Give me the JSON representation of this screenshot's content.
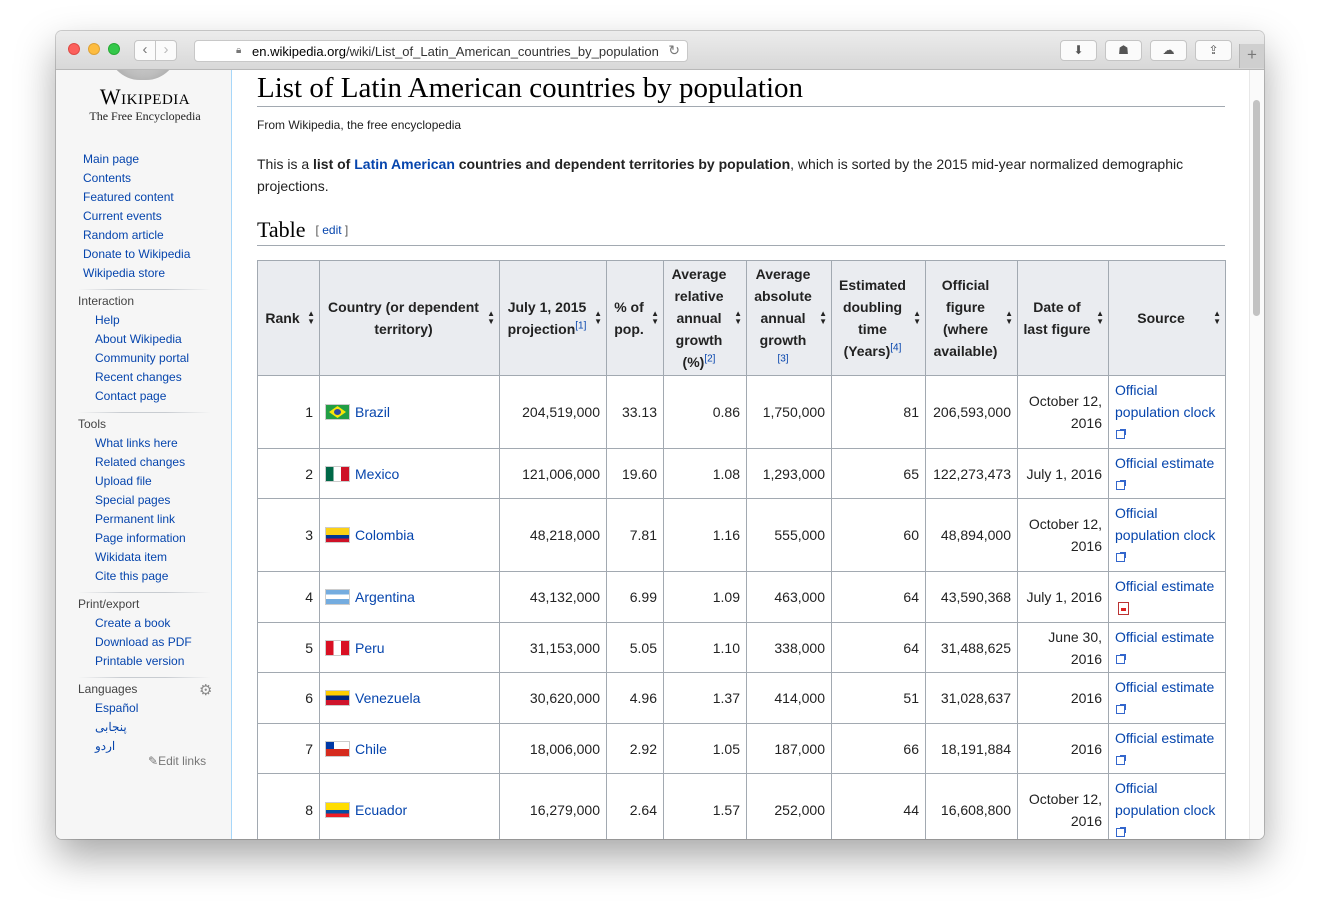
{
  "browser": {
    "url_host": "en.wikipedia.org",
    "url_path": "/wiki/List_of_Latin_American_countries_by_population"
  },
  "sidebar": {
    "wordmark": "Wikipedia",
    "tagline": "The Free Encyclopedia",
    "nav": [
      "Main page",
      "Contents",
      "Featured content",
      "Current events",
      "Random article",
      "Donate to Wikipedia",
      "Wikipedia store"
    ],
    "interaction_head": "Interaction",
    "interaction": [
      "Help",
      "About Wikipedia",
      "Community portal",
      "Recent changes",
      "Contact page"
    ],
    "tools_head": "Tools",
    "tools": [
      "What links here",
      "Related changes",
      "Upload file",
      "Special pages",
      "Permanent link",
      "Page information",
      "Wikidata item",
      "Cite this page"
    ],
    "print_head": "Print/export",
    "print": [
      "Create a book",
      "Download as PDF",
      "Printable version"
    ],
    "languages_head": "Languages",
    "languages": [
      "Español",
      "پنجابی",
      "اردو"
    ],
    "edit_links": "Edit links"
  },
  "article": {
    "title": "List of Latin American countries by population",
    "site_sub": "From Wikipedia, the free encyclopedia",
    "intro": {
      "p1": "This is a ",
      "b1": "list of ",
      "link": "Latin American",
      "b2": " countries and dependent territories by population",
      "p2": ", which is sorted by the 2015 mid-year normalized demographic projections."
    },
    "section_title": "Table",
    "edit_label": "edit"
  },
  "table": {
    "headers": {
      "rank": "Rank",
      "country": "Country (or dependent territory)",
      "projection": "July 1, 2015 projection",
      "projection_ref": "[1]",
      "pct": "% of pop.",
      "rel_growth": "Average relative annual growth (%)",
      "rel_growth_ref": "[2]",
      "abs_growth": "Average absolute annual growth",
      "abs_growth_ref": "[3]",
      "doubling": "Estimated doubling time (Years)",
      "doubling_ref": "[4]",
      "official": "Official figure (where available)",
      "date": "Date of last figure",
      "source": "Source"
    },
    "rows": [
      {
        "rank": "1",
        "flag": "brazil",
        "country": "Brazil",
        "projection": "204,519,000",
        "pct": "33.13",
        "rel": "0.86",
        "abs": "1,750,000",
        "doubling": "81",
        "official": "206,593,000",
        "date": "October 12, 2016",
        "source": "Official population clock",
        "source_icon": "external-link-icon"
      },
      {
        "rank": "2",
        "flag": "mexico",
        "country": "Mexico",
        "projection": "121,006,000",
        "pct": "19.60",
        "rel": "1.08",
        "abs": "1,293,000",
        "doubling": "65",
        "official": "122,273,473",
        "date": "July 1, 2016",
        "source": "Official estimate",
        "source_icon": "external-link-icon"
      },
      {
        "rank": "3",
        "flag": "colombia",
        "country": "Colombia",
        "projection": "48,218,000",
        "pct": "7.81",
        "rel": "1.16",
        "abs": "555,000",
        "doubling": "60",
        "official": "48,894,000",
        "date": "October 12, 2016",
        "source": "Official population clock",
        "source_icon": "external-link-icon"
      },
      {
        "rank": "4",
        "flag": "argentina",
        "country": "Argentina",
        "projection": "43,132,000",
        "pct": "6.99",
        "rel": "1.09",
        "abs": "463,000",
        "doubling": "64",
        "official": "43,590,368",
        "date": "July 1, 2016",
        "source": "Official estimate",
        "source_icon": "pdf-icon"
      },
      {
        "rank": "5",
        "flag": "peru",
        "country": "Peru",
        "projection": "31,153,000",
        "pct": "5.05",
        "rel": "1.10",
        "abs": "338,000",
        "doubling": "64",
        "official": "31,488,625",
        "date": "June 30, 2016",
        "source": "Official estimate",
        "source_icon": "external-link-icon"
      },
      {
        "rank": "6",
        "flag": "venezuela",
        "country": "Venezuela",
        "projection": "30,620,000",
        "pct": "4.96",
        "rel": "1.37",
        "abs": "414,000",
        "doubling": "51",
        "official": "31,028,637",
        "date": "2016",
        "source": "Official estimate",
        "source_icon": "external-link-icon"
      },
      {
        "rank": "7",
        "flag": "chile",
        "country": "Chile",
        "projection": "18,006,000",
        "pct": "2.92",
        "rel": "1.05",
        "abs": "187,000",
        "doubling": "66",
        "official": "18,191,884",
        "date": "2016",
        "source": "Official estimate",
        "source_icon": "external-link-icon"
      },
      {
        "rank": "8",
        "flag": "ecuador",
        "country": "Ecuador",
        "projection": "16,279,000",
        "pct": "2.64",
        "rel": "1.57",
        "abs": "252,000",
        "doubling": "44",
        "official": "16,608,800",
        "date": "October 12, 2016",
        "source": "Official population clock",
        "source_icon": "external-link-icon"
      }
    ]
  },
  "colors": {
    "link": "#0645ad",
    "header_bg": "#eaecf0",
    "border": "#a2a9b1",
    "sidebar_bg": "#f6f6f6"
  }
}
